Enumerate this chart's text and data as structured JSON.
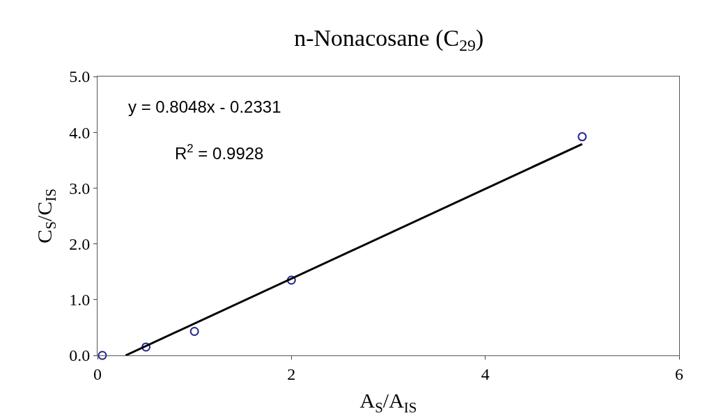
{
  "chart_data": {
    "type": "scatter",
    "title": "n-Nonacosane (C$_{29}$)",
    "xlabel": "A$_{S}$/A$_{IS}$",
    "ylabel": "C$_{S}$/C$_{IS}$",
    "xlim": [
      0,
      6
    ],
    "xticks": [
      0,
      2,
      4,
      6
    ],
    "ylim": [
      0,
      5
    ],
    "yticks": [
      {
        "value": 0,
        "label": "0.0"
      },
      {
        "value": 1,
        "label": "1.0"
      },
      {
        "value": 2,
        "label": "2.0"
      },
      {
        "value": 3,
        "label": "3.0"
      },
      {
        "value": 4,
        "label": "4.0"
      },
      {
        "value": 5,
        "label": "5.0"
      }
    ],
    "series": [
      {
        "marker": "circle",
        "color": "#1f1f8f",
        "x": [
          0.05,
          0.5,
          1.0,
          2.0,
          5.0
        ],
        "values": [
          0.0,
          0.15,
          0.43,
          1.35,
          3.92
        ]
      },
      {
        "type": "line",
        "marker": "none",
        "line_style": "solid",
        "color": "#000000",
        "x": [
          0.29,
          5.0
        ],
        "values": [
          0.0,
          3.79
        ]
      }
    ],
    "annotations": [
      "y = 0.8048x - 0.2331",
      "R$^{2}$ = 0.9928"
    ]
  }
}
